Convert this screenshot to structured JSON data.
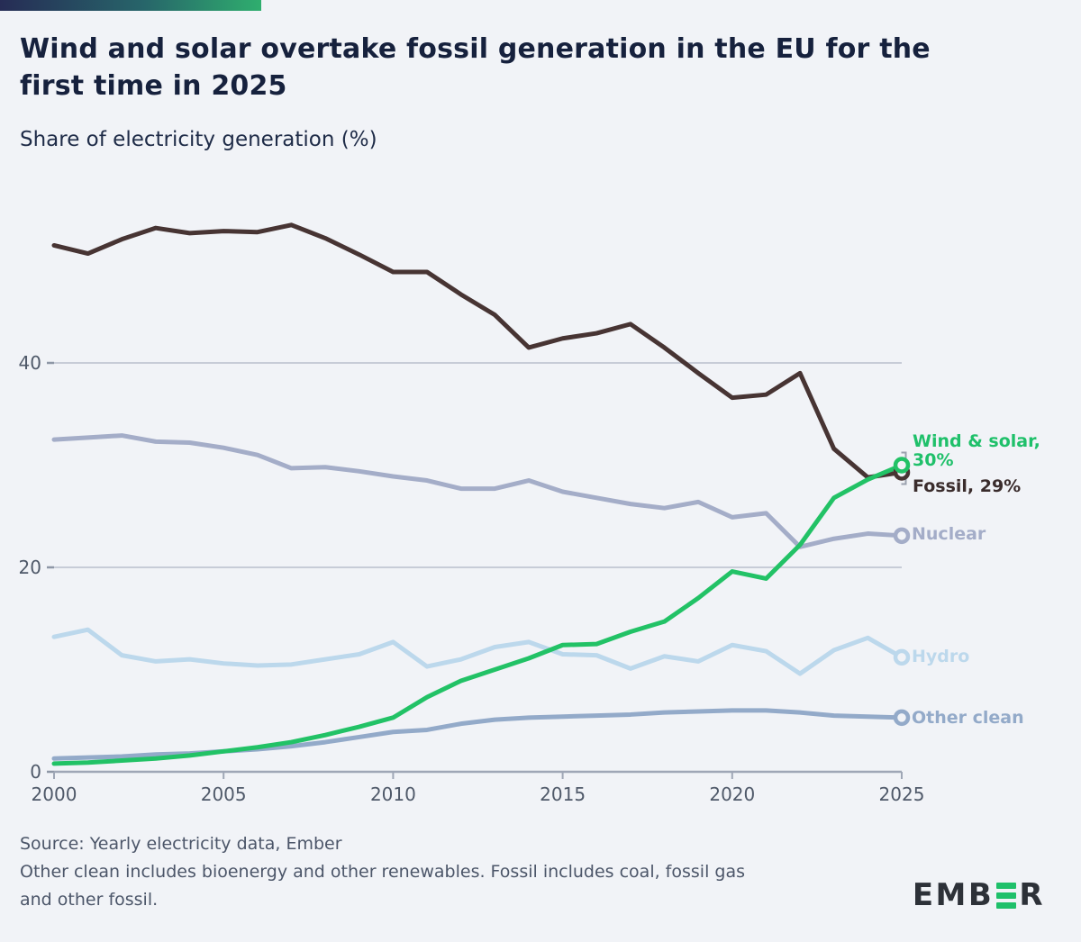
{
  "header": {
    "title_line1": "Wind and solar overtake fossil generation in the EU for the",
    "title_line2": "first time in 2025",
    "subtitle": "Share of electricity generation (%)"
  },
  "chart_data": {
    "type": "line",
    "x": [
      2000,
      2001,
      2002,
      2003,
      2004,
      2005,
      2006,
      2007,
      2008,
      2009,
      2010,
      2011,
      2012,
      2013,
      2014,
      2015,
      2016,
      2017,
      2018,
      2019,
      2020,
      2021,
      2022,
      2023,
      2024,
      2025
    ],
    "series": [
      {
        "key": "nuclear",
        "name": "Nuclear",
        "color": "#a4adc8",
        "values": [
          32.5,
          32.7,
          32.9,
          32.3,
          32.2,
          31.7,
          31.0,
          29.7,
          29.8,
          29.4,
          28.9,
          28.5,
          27.7,
          27.7,
          28.5,
          27.4,
          26.8,
          26.2,
          25.8,
          26.4,
          24.9,
          25.3,
          22.0,
          22.8,
          23.3,
          23.1
        ]
      },
      {
        "key": "hydro",
        "name": "Hydro",
        "color": "#bcd8ec",
        "values": [
          13.2,
          13.9,
          11.4,
          10.8,
          11.0,
          10.6,
          10.4,
          10.5,
          11.0,
          11.5,
          12.7,
          10.3,
          11.0,
          12.2,
          12.7,
          11.5,
          11.4,
          10.1,
          11.3,
          10.8,
          12.4,
          11.8,
          9.6,
          11.9,
          13.1,
          11.2
        ]
      },
      {
        "key": "other-clean",
        "name": "Other clean",
        "color": "#93aac9",
        "values": [
          1.3,
          1.4,
          1.5,
          1.7,
          1.8,
          2.0,
          2.2,
          2.5,
          2.9,
          3.4,
          3.9,
          4.1,
          4.7,
          5.1,
          5.3,
          5.4,
          5.5,
          5.6,
          5.8,
          5.9,
          6.0,
          6.0,
          5.8,
          5.5,
          5.4,
          5.3
        ]
      },
      {
        "key": "fossil",
        "name": "Fossil",
        "color": "#473433",
        "values": [
          51.5,
          50.7,
          52.1,
          53.2,
          52.7,
          52.9,
          52.8,
          53.5,
          52.2,
          50.6,
          48.9,
          48.9,
          46.7,
          44.7,
          41.5,
          42.4,
          42.9,
          43.8,
          41.5,
          39.0,
          36.6,
          36.9,
          39.0,
          31.6,
          28.8,
          29.3
        ]
      },
      {
        "key": "wind-solar",
        "name": "Wind & solar",
        "color": "#22c266",
        "values": [
          0.8,
          0.9,
          1.1,
          1.3,
          1.6,
          2.0,
          2.4,
          2.9,
          3.6,
          4.4,
          5.3,
          7.3,
          8.9,
          10.0,
          11.1,
          12.4,
          12.5,
          13.7,
          14.7,
          17.0,
          19.6,
          18.9,
          22.2,
          26.8,
          28.6,
          30.0
        ]
      }
    ],
    "x_ticks": [
      2000,
      2005,
      2010,
      2015,
      2020,
      2025
    ],
    "y_ticks": [
      0,
      20,
      40
    ],
    "ylim": [
      0,
      56
    ],
    "grid": "horizontal",
    "legend_position": "right-end-labels",
    "title": "Wind and solar overtake fossil generation in the EU for the first time in 2025",
    "ylabel": "Share of electricity generation (%)"
  },
  "end_labels": {
    "wind_solar_line1": "Wind & solar,",
    "wind_solar_line2": "30%",
    "fossil": "Fossil, 29%",
    "nuclear": "Nuclear",
    "hydro": "Hydro",
    "other_clean": "Other clean"
  },
  "footer": {
    "source": "Source: Yearly electricity data, Ember",
    "note_line1": "Other clean includes bioenergy and other renewables. Fossil includes coal, fossil gas",
    "note_line2": "and other fossil.",
    "logo_part1": "EMB",
    "logo_part2": "R"
  },
  "colors": {
    "background": "#f1f3f7",
    "accent_green": "#22c266",
    "fossil_dark": "#473433",
    "gridline": "#c7ccd7",
    "axis": "#9fa7b6",
    "tick_text": "#4f5969"
  }
}
